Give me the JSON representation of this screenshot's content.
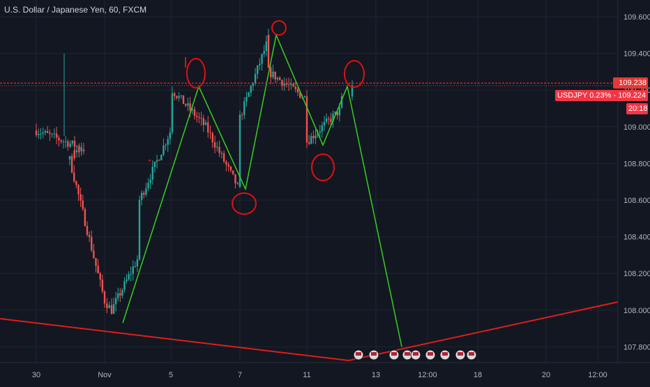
{
  "header": {
    "title": "U.S. Dollar / Japanese Yen, 60, FXCM"
  },
  "colors": {
    "background": "#131722",
    "grid": "#1f2433",
    "up": "#26a69a",
    "down": "#ef5350",
    "zigzag": "#33d11d",
    "trendline": "#e21c1c",
    "circles": "#e01010",
    "alert_line": "#ff2b2b"
  },
  "price_tags": {
    "alert_price": "109.238",
    "current_symbol": "USDJPY 0.23%",
    "current_price": "109.224",
    "countdown": "20:18"
  },
  "chart_data": {
    "type": "candlestick",
    "symbol": "USDJPY",
    "interval": "60",
    "source": "FXCM",
    "y_axis": {
      "range": [
        107.72,
        109.7
      ],
      "ticks": [
        "109.600",
        "109.400",
        "109.200",
        "109.000",
        "108.800",
        "108.600",
        "108.400",
        "108.200",
        "108.000",
        "107.800"
      ]
    },
    "x_axis": {
      "ticks": [
        "30",
        "Nov",
        "5",
        "7",
        "11",
        "13",
        "12:00",
        "18",
        "20",
        "12:00"
      ]
    },
    "approx_close_path": [
      [
        "30 Oct",
        108.98
      ],
      [
        "31 Oct",
        108.88
      ],
      [
        "31 Oct",
        108.82
      ],
      [
        "Nov",
        108.05
      ],
      [
        "1 Nov",
        108.0
      ],
      [
        "4 Nov",
        108.3
      ],
      [
        "4 Nov",
        108.6
      ],
      [
        "5 Nov",
        109.0
      ],
      [
        "5 Nov",
        109.2
      ],
      [
        "6 Nov",
        109.0
      ],
      [
        "7 Nov",
        108.65
      ],
      [
        "7 Nov",
        109.05
      ],
      [
        "8 Nov",
        109.48
      ],
      [
        "8 Nov",
        109.3
      ],
      [
        "11 Nov",
        109.15
      ],
      [
        "11 Nov",
        108.92
      ],
      [
        "12 Nov",
        109.1
      ],
      [
        "12 Nov",
        109.224
      ]
    ],
    "zigzag_drawing": [
      [
        "1 Nov",
        107.93
      ],
      [
        "5 Nov",
        109.22
      ],
      [
        "7 Nov",
        108.66
      ],
      [
        "8 Nov",
        109.5
      ],
      [
        "11 Nov",
        108.9
      ],
      [
        "12 Nov",
        109.22
      ],
      [
        "13 Nov",
        107.8
      ]
    ],
    "trendline_drawing": [
      [
        "29 Oct",
        107.97
      ],
      [
        "12 Nov",
        107.74
      ],
      [
        "21 Nov",
        108.06
      ]
    ],
    "alert_level": 109.238,
    "current_price": 109.224,
    "change_pct": "0.23%",
    "grid": true
  }
}
